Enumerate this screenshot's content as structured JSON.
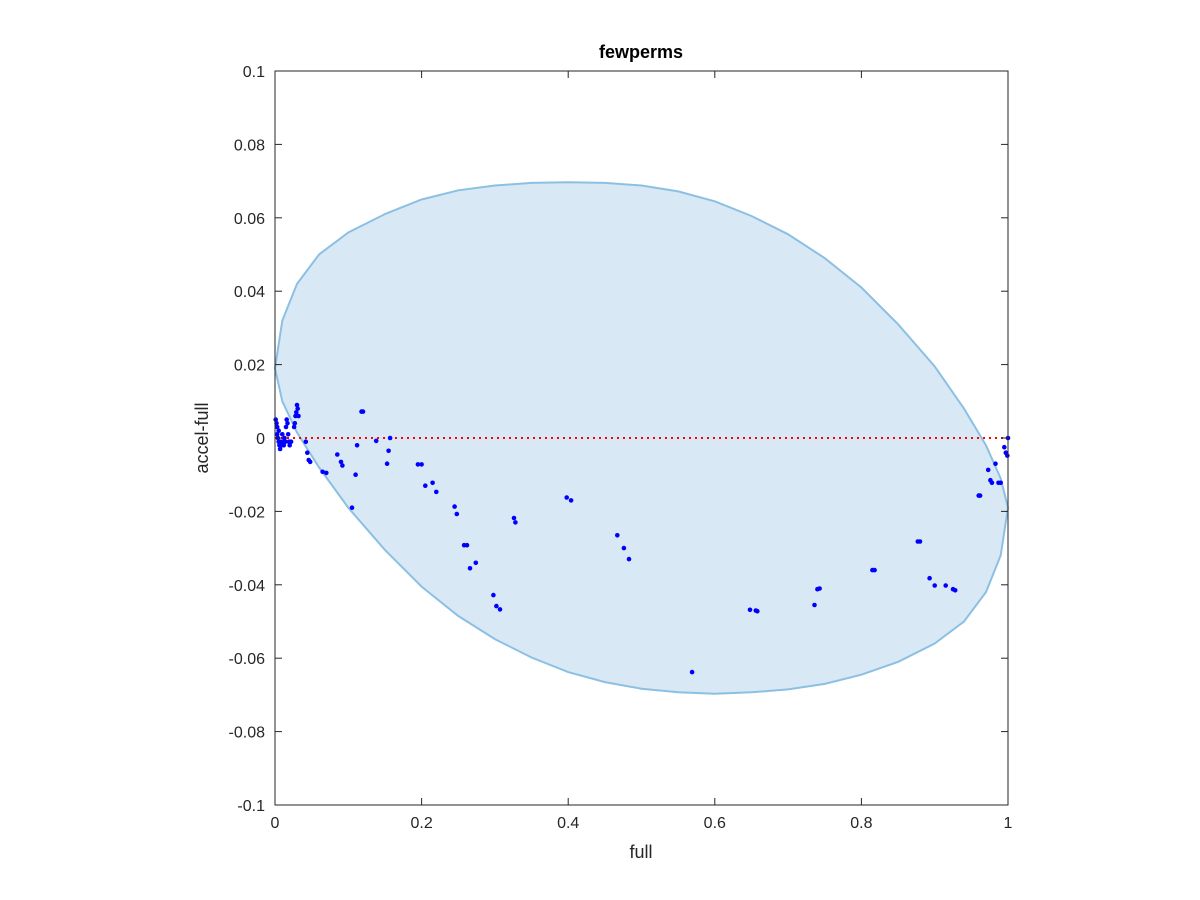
{
  "chart_data": {
    "type": "scatter",
    "title": "fewperms",
    "xlabel": "full",
    "ylabel": "accel-full",
    "xlim": [
      0,
      1
    ],
    "ylim": [
      -0.1,
      0.1
    ],
    "xticks": [
      0,
      0.2,
      0.4,
      0.6,
      0.8,
      1
    ],
    "xtick_labels": [
      "0",
      "0.2",
      "0.4",
      "0.6",
      "0.8",
      "1"
    ],
    "yticks": [
      -0.1,
      -0.08,
      -0.06,
      -0.04,
      -0.02,
      0,
      0.02,
      0.04,
      0.06,
      0.08,
      0.1
    ],
    "ytick_labels": [
      "-0.1",
      "-0.08",
      "-0.06",
      "-0.04",
      "-0.02",
      "0",
      "0.02",
      "0.04",
      "0.06",
      "0.08",
      "0.1"
    ],
    "grid": false,
    "reference_line": {
      "y": 0,
      "style": "dotted",
      "color": "#ff0000"
    },
    "region": {
      "shape": "ellipse",
      "fill": "#d9e8f5",
      "stroke": "#8cc0e3",
      "points": [
        [
          0,
          0.019
        ],
        [
          0.01,
          0.032
        ],
        [
          0.03,
          0.042
        ],
        [
          0.06,
          0.05
        ],
        [
          0.1,
          0.056
        ],
        [
          0.15,
          0.061
        ],
        [
          0.2,
          0.065
        ],
        [
          0.25,
          0.0675
        ],
        [
          0.3,
          0.0688
        ],
        [
          0.35,
          0.0695
        ],
        [
          0.4,
          0.0697
        ],
        [
          0.45,
          0.0695
        ],
        [
          0.5,
          0.0688
        ],
        [
          0.55,
          0.0672
        ],
        [
          0.6,
          0.0645
        ],
        [
          0.65,
          0.0605
        ],
        [
          0.7,
          0.0555
        ],
        [
          0.75,
          0.049
        ],
        [
          0.8,
          0.041
        ],
        [
          0.85,
          0.031
        ],
        [
          0.9,
          0.0195
        ],
        [
          0.94,
          0.008
        ],
        [
          0.97,
          -0.002
        ],
        [
          0.99,
          -0.011
        ],
        [
          1,
          -0.019
        ],
        [
          0.99,
          -0.032
        ],
        [
          0.97,
          -0.042
        ],
        [
          0.94,
          -0.05
        ],
        [
          0.9,
          -0.056
        ],
        [
          0.85,
          -0.061
        ],
        [
          0.8,
          -0.0645
        ],
        [
          0.75,
          -0.067
        ],
        [
          0.7,
          -0.0685
        ],
        [
          0.65,
          -0.0693
        ],
        [
          0.6,
          -0.0697
        ],
        [
          0.55,
          -0.0693
        ],
        [
          0.5,
          -0.0683
        ],
        [
          0.45,
          -0.0665
        ],
        [
          0.4,
          -0.0638
        ],
        [
          0.35,
          -0.0598
        ],
        [
          0.3,
          -0.0548
        ],
        [
          0.25,
          -0.0485
        ],
        [
          0.2,
          -0.0405
        ],
        [
          0.15,
          -0.0305
        ],
        [
          0.1,
          -0.019
        ],
        [
          0.06,
          -0.008
        ],
        [
          0.03,
          0.0015
        ],
        [
          0.01,
          0.01
        ],
        [
          0,
          0.019
        ]
      ]
    },
    "series": [
      {
        "marker_color": "#0000ff",
        "points": [
          [
            0.001,
            0.005
          ],
          [
            0.002,
            0.004
          ],
          [
            0.003,
            0.003
          ],
          [
            0.003,
            0.001
          ],
          [
            0.004,
            0.0
          ],
          [
            0.005,
            -0.001
          ],
          [
            0.005,
            0.002
          ],
          [
            0.006,
            -0.002
          ],
          [
            0.007,
            -0.003
          ],
          [
            0.008,
            -0.001
          ],
          [
            0.009,
            -0.002
          ],
          [
            0.01,
            0.001
          ],
          [
            0.011,
            -0.001
          ],
          [
            0.012,
            -0.002
          ],
          [
            0.013,
            0.0
          ],
          [
            0.014,
            -0.001
          ],
          [
            0.015,
            0.003
          ],
          [
            0.016,
            0.005
          ],
          [
            0.017,
            0.004
          ],
          [
            0.018,
            0.001
          ],
          [
            0.019,
            -0.001
          ],
          [
            0.02,
            -0.002
          ],
          [
            0.022,
            -0.001
          ],
          [
            0.026,
            0.003
          ],
          [
            0.027,
            0.004
          ],
          [
            0.028,
            0.006
          ],
          [
            0.029,
            0.007
          ],
          [
            0.03,
            0.009
          ],
          [
            0.031,
            0.008
          ],
          [
            0.032,
            0.006
          ],
          [
            0.042,
            -0.001
          ],
          [
            0.044,
            -0.004
          ],
          [
            0.046,
            -0.006
          ],
          [
            0.048,
            -0.0065
          ],
          [
            0.065,
            -0.0092
          ],
          [
            0.07,
            -0.0095
          ],
          [
            0.085,
            -0.0045
          ],
          [
            0.09,
            -0.0065
          ],
          [
            0.092,
            -0.0075
          ],
          [
            0.105,
            -0.019
          ],
          [
            0.11,
            -0.01
          ],
          [
            0.112,
            -0.002
          ],
          [
            0.118,
            0.0072
          ],
          [
            0.12,
            0.0072
          ],
          [
            0.138,
            -0.0008
          ],
          [
            0.153,
            -0.007
          ],
          [
            0.155,
            -0.0035
          ],
          [
            0.157,
            0.0
          ],
          [
            0.195,
            -0.0072
          ],
          [
            0.2,
            -0.0072
          ],
          [
            0.205,
            -0.013
          ],
          [
            0.215,
            -0.0122
          ],
          [
            0.22,
            -0.0147
          ],
          [
            0.245,
            -0.0187
          ],
          [
            0.248,
            -0.0207
          ],
          [
            0.258,
            -0.0292
          ],
          [
            0.262,
            -0.0292
          ],
          [
            0.266,
            -0.0355
          ],
          [
            0.274,
            -0.034
          ],
          [
            0.298,
            -0.0428
          ],
          [
            0.302,
            -0.0458
          ],
          [
            0.307,
            -0.0467
          ],
          [
            0.326,
            -0.0218
          ],
          [
            0.328,
            -0.023
          ],
          [
            0.398,
            -0.0162
          ],
          [
            0.404,
            -0.017
          ],
          [
            0.467,
            -0.0265
          ],
          [
            0.476,
            -0.03
          ],
          [
            0.483,
            -0.033
          ],
          [
            0.569,
            -0.0638
          ],
          [
            0.648,
            -0.0468
          ],
          [
            0.656,
            -0.047
          ],
          [
            0.658,
            -0.0472
          ],
          [
            0.736,
            -0.0455
          ],
          [
            0.74,
            -0.0412
          ],
          [
            0.743,
            -0.041
          ],
          [
            0.815,
            -0.036
          ],
          [
            0.818,
            -0.036
          ],
          [
            0.877,
            -0.0282
          ],
          [
            0.88,
            -0.0282
          ],
          [
            0.893,
            -0.0382
          ],
          [
            0.9,
            -0.0402
          ],
          [
            0.915,
            -0.0402
          ],
          [
            0.925,
            -0.0412
          ],
          [
            0.928,
            -0.0415
          ],
          [
            0.96,
            -0.0157
          ],
          [
            0.962,
            -0.0157
          ],
          [
            0.973,
            -0.0087
          ],
          [
            0.976,
            -0.0115
          ],
          [
            0.978,
            -0.0122
          ],
          [
            0.983,
            -0.007
          ],
          [
            0.987,
            -0.0122
          ],
          [
            0.99,
            -0.0122
          ],
          [
            0.995,
            -0.0025
          ],
          [
            0.997,
            -0.004
          ],
          [
            0.999,
            -0.0048
          ],
          [
            1.0,
            0.0
          ]
        ]
      }
    ]
  }
}
